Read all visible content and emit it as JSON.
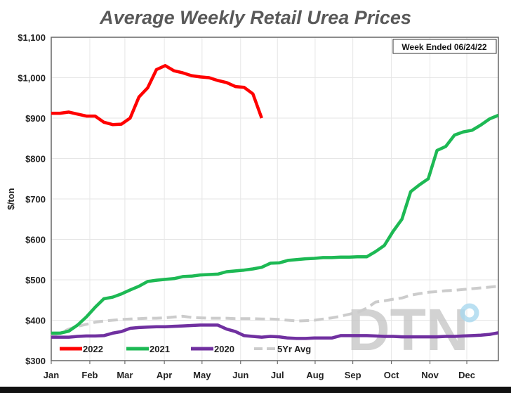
{
  "chart_data": {
    "type": "line",
    "title": "Average Weekly Retail Urea Prices",
    "annotation": "Week Ended 06/24/22",
    "ylabel": "$/ton",
    "ylim": [
      300,
      1100
    ],
    "yticks": [
      300,
      400,
      500,
      600,
      700,
      800,
      900,
      1000,
      1100
    ],
    "ytick_labels": [
      "$300",
      "$400",
      "$500",
      "$600",
      "$700",
      "$800",
      "$900",
      "$1,000",
      "$1,100"
    ],
    "xtick_labels": [
      "Jan",
      "Feb",
      "Mar",
      "Apr",
      "May",
      "Jun",
      "Jul",
      "Aug",
      "Sep",
      "Oct",
      "Nov",
      "Dec"
    ],
    "x_unit": "week of year (0-51)",
    "grid": true,
    "legend_position": "bottom-left",
    "watermark": "DTN",
    "series": [
      {
        "name": "2022",
        "color": "#ff0000",
        "dash": false,
        "values": [
          912,
          912,
          915,
          910,
          905,
          905,
          890,
          884,
          885,
          900,
          952,
          975,
          1020,
          1030,
          1017,
          1012,
          1005,
          1002,
          1000,
          993,
          988,
          978,
          976,
          960,
          900
        ]
      },
      {
        "name": "2021",
        "color": "#1db954",
        "dash": false,
        "values": [
          368,
          368,
          373,
          388,
          408,
          432,
          453,
          457,
          465,
          475,
          484,
          496,
          499,
          501,
          503,
          508,
          509,
          512,
          513,
          514,
          520,
          522,
          524,
          527,
          531,
          541,
          542,
          548,
          550,
          552,
          553,
          555,
          555,
          556,
          556,
          557,
          557,
          570,
          585,
          620,
          650,
          718,
          735,
          750,
          820,
          830,
          858,
          866,
          870,
          883,
          898,
          907
        ]
      },
      {
        "name": "2020",
        "color": "#7030a0",
        "dash": false,
        "values": [
          358,
          358,
          358,
          360,
          361,
          361,
          362,
          368,
          372,
          380,
          382,
          383,
          384,
          384,
          385,
          386,
          387,
          388,
          388,
          388,
          378,
          372,
          362,
          360,
          358,
          360,
          359,
          356,
          355,
          355,
          356,
          356,
          356,
          362,
          362,
          362,
          362,
          361,
          360,
          360,
          359,
          359,
          359,
          359,
          359,
          360,
          360,
          361,
          362,
          363,
          365,
          369
        ]
      },
      {
        "name": "5Yr Avg",
        "color": "#cccccc",
        "dash": true,
        "values": [
          362,
          368,
          378,
          385,
          390,
          395,
          398,
          400,
          402,
          403,
          404,
          405,
          405,
          406,
          408,
          410,
          407,
          406,
          405,
          405,
          405,
          404,
          404,
          404,
          403,
          403,
          402,
          400,
          398,
          399,
          400,
          403,
          406,
          410,
          415,
          420,
          430,
          445,
          448,
          452,
          455,
          462,
          466,
          469,
          471,
          473,
          474,
          476,
          478,
          480,
          482,
          484
        ]
      }
    ]
  }
}
